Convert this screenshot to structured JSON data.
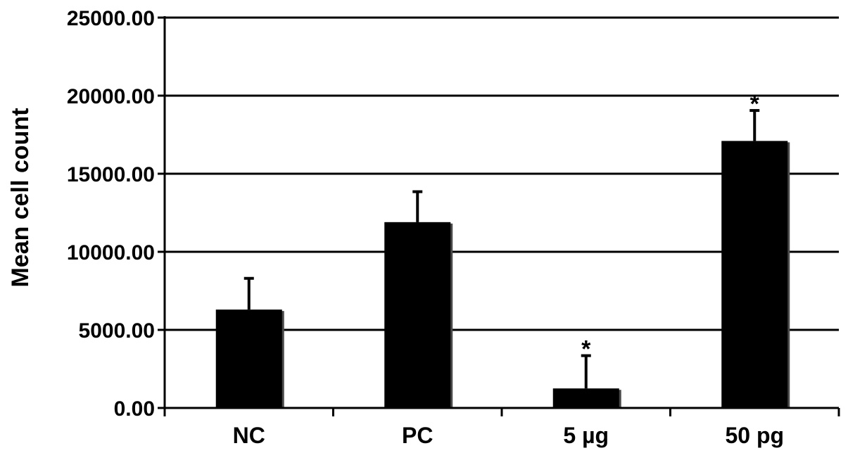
{
  "chart_data": {
    "type": "bar",
    "title": "",
    "xlabel": "",
    "ylabel": "Mean cell count",
    "ylim": [
      0,
      25000
    ],
    "yticks": [
      0,
      5000,
      10000,
      15000,
      20000,
      25000
    ],
    "ytick_labels": [
      "0.00",
      "5000.00",
      "10000.00",
      "15000.00",
      "20000.00",
      "25000.00"
    ],
    "grid": true,
    "legend": "none",
    "categories": [
      "NC",
      "PC",
      "5 µg",
      "50 pg"
    ],
    "values": [
      6300,
      11900,
      1250,
      17100
    ],
    "error_upper": [
      8300,
      13850,
      3350,
      19050
    ],
    "significance": [
      "",
      "",
      "*",
      "*"
    ],
    "bar_color": "#000000",
    "grid_color": "#000000"
  }
}
